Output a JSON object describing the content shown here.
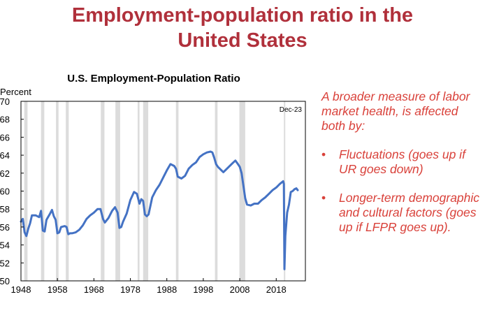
{
  "slide": {
    "title_line1": "Employment-population ratio in the",
    "title_line2": "United States"
  },
  "side_text": {
    "intro": "A broader measure of labor market health, is affected both by:",
    "bullets": [
      {
        "marker": "•",
        "text": "Fluctuations (goes up if UR goes down)"
      },
      {
        "marker": "•",
        "text": "Longer-term demographic and cultural factors (goes up if LFPR goes up)."
      }
    ]
  },
  "colors": {
    "title": "#b0303b",
    "side_text": "#d9413a",
    "series": "#4472c4",
    "recession": "#dcdcdc"
  },
  "chart_data": {
    "type": "line",
    "title": "U.S. Employment-Population  Ratio",
    "ylabel": "Percent",
    "xlabel": "",
    "xlim": [
      1948,
      2026
    ],
    "ylim": [
      50,
      70
    ],
    "x_ticks": [
      1948,
      1958,
      1968,
      1978,
      1988,
      1998,
      2008,
      2018
    ],
    "y_ticks": [
      50,
      52,
      54,
      56,
      58,
      60,
      62,
      64,
      66,
      68,
      70
    ],
    "annotation": "Dec-23",
    "grid": false,
    "legend": "none",
    "recessions": [
      [
        1948.9,
        1949.8
      ],
      [
        1953.5,
        1954.4
      ],
      [
        1957.6,
        1958.3
      ],
      [
        1960.3,
        1961.1
      ],
      [
        1969.9,
        1970.9
      ],
      [
        1973.9,
        1975.2
      ],
      [
        1980.0,
        1980.5
      ],
      [
        1981.5,
        1982.9
      ],
      [
        1990.5,
        1991.2
      ],
      [
        2001.2,
        2001.9
      ],
      [
        2007.9,
        2009.5
      ],
      [
        2020.1,
        2020.3
      ]
    ],
    "series": [
      {
        "x": [
          1948.0,
          1948.5,
          1949.0,
          1949.5,
          1950.0,
          1950.5,
          1951.0,
          1952.0,
          1953.0,
          1953.5,
          1954.0,
          1954.5,
          1955.0,
          1956.0,
          1956.5,
          1957.0,
          1957.5,
          1958.0,
          1958.5,
          1959.0,
          1960.0,
          1960.5,
          1961.0,
          1961.5,
          1962.0,
          1963.0,
          1964.0,
          1965.0,
          1966.0,
          1967.0,
          1968.0,
          1969.0,
          1969.8,
          1970.5,
          1971.0,
          1972.0,
          1973.0,
          1973.8,
          1974.5,
          1975.0,
          1975.5,
          1976.0,
          1977.0,
          1978.0,
          1979.0,
          1979.8,
          1980.5,
          1981.0,
          1981.5,
          1982.0,
          1982.5,
          1983.0,
          1984.0,
          1985.0,
          1986.0,
          1987.0,
          1988.0,
          1989.0,
          1990.0,
          1990.5,
          1991.0,
          1992.0,
          1993.0,
          1994.0,
          1995.0,
          1996.0,
          1997.0,
          1998.0,
          1999.0,
          2000.0,
          2000.5,
          2001.0,
          2001.5,
          2002.0,
          2003.0,
          2003.5,
          2004.0,
          2005.0,
          2006.0,
          2006.8,
          2007.5,
          2008.0,
          2008.5,
          2009.0,
          2009.5,
          2010.0,
          2011.0,
          2012.0,
          2013.0,
          2014.0,
          2015.0,
          2016.0,
          2017.0,
          2018.0,
          2019.0,
          2019.9,
          2020.1,
          2020.25,
          2020.5,
          2021.0,
          2021.5,
          2022.0,
          2022.5,
          2023.0,
          2023.5,
          2023.9
        ],
        "y": [
          56.6,
          56.9,
          55.4,
          55.0,
          55.8,
          56.4,
          57.3,
          57.3,
          57.1,
          57.8,
          55.6,
          55.5,
          56.8,
          57.5,
          57.9,
          57.2,
          56.8,
          55.3,
          55.4,
          56.0,
          56.1,
          56.0,
          55.2,
          55.3,
          55.3,
          55.4,
          55.7,
          56.2,
          56.9,
          57.3,
          57.6,
          58.0,
          58.0,
          56.9,
          56.5,
          57.0,
          57.8,
          58.2,
          57.6,
          55.9,
          56.0,
          56.6,
          57.5,
          59.0,
          59.9,
          59.7,
          58.6,
          59.1,
          58.9,
          57.4,
          57.2,
          57.4,
          59.3,
          60.1,
          60.7,
          61.5,
          62.3,
          63.0,
          62.8,
          62.5,
          61.6,
          61.4,
          61.7,
          62.5,
          62.9,
          63.2,
          63.8,
          64.1,
          64.3,
          64.4,
          64.3,
          63.7,
          63.0,
          62.7,
          62.3,
          62.1,
          62.3,
          62.7,
          63.1,
          63.4,
          63.0,
          62.7,
          62.0,
          60.6,
          59.2,
          58.5,
          58.4,
          58.6,
          58.6,
          59.0,
          59.3,
          59.7,
          60.1,
          60.4,
          60.8,
          61.1,
          60.8,
          51.3,
          55.0,
          57.6,
          58.5,
          59.9,
          60.0,
          60.2,
          60.3,
          60.1
        ]
      }
    ]
  }
}
